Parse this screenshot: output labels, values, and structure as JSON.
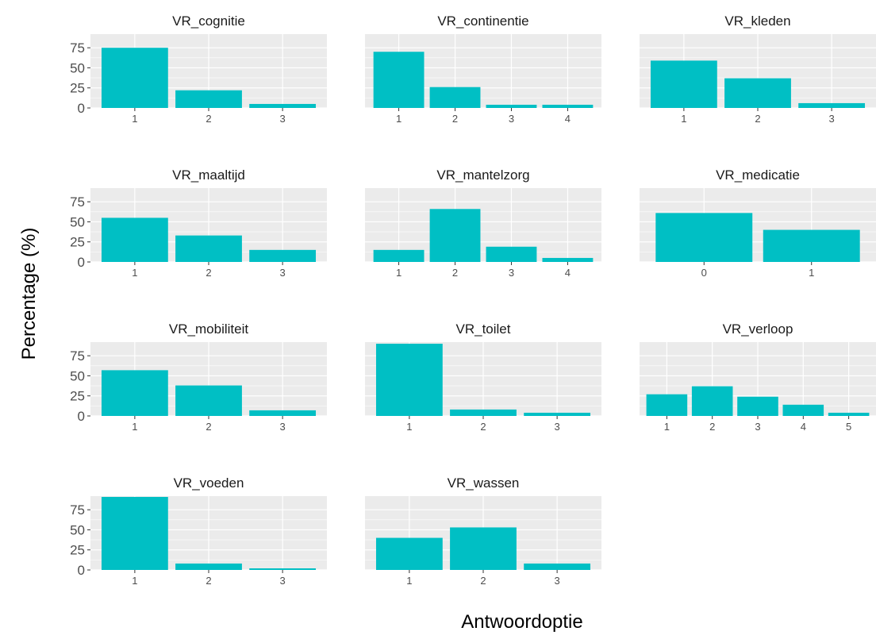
{
  "colors": {
    "bar": "#00bfc4",
    "panel_background": "#ebebeb",
    "gridline": "#ffffff",
    "tick_text": "#4d4d4d",
    "title_text": "#1a1a1a"
  },
  "chart_data": {
    "type": "bar",
    "layout": "facet-grid",
    "facet_columns": 3,
    "xlabel": "Antwoordoptie",
    "ylabel": "Percentage (%)",
    "ylim": [
      0,
      92
    ],
    "y_ticks": [
      0,
      25,
      50,
      75
    ],
    "y_tick_labels": [
      "0",
      "25",
      "50",
      "75"
    ],
    "grid": true,
    "shared_y": true,
    "free_x": true,
    "facets": [
      {
        "title": "VR_cognitie",
        "categories": [
          "1",
          "2",
          "3"
        ],
        "values": [
          75,
          22,
          5
        ]
      },
      {
        "title": "VR_continentie",
        "categories": [
          "1",
          "2",
          "3",
          "4"
        ],
        "values": [
          70,
          26,
          4,
          4
        ]
      },
      {
        "title": "VR_kleden",
        "categories": [
          "1",
          "2",
          "3"
        ],
        "values": [
          59,
          37,
          6
        ]
      },
      {
        "title": "VR_maaltijd",
        "categories": [
          "1",
          "2",
          "3"
        ],
        "values": [
          55,
          33,
          15
        ]
      },
      {
        "title": "VR_mantelzorg",
        "categories": [
          "1",
          "2",
          "3",
          "4"
        ],
        "values": [
          15,
          66,
          19,
          5
        ]
      },
      {
        "title": "VR_medicatie",
        "categories": [
          "0",
          "1"
        ],
        "values": [
          61,
          40
        ]
      },
      {
        "title": "VR_mobiliteit",
        "categories": [
          "1",
          "2",
          "3"
        ],
        "values": [
          57,
          38,
          7
        ]
      },
      {
        "title": "VR_toilet",
        "categories": [
          "1",
          "2",
          "3"
        ],
        "values": [
          90,
          8,
          4
        ]
      },
      {
        "title": "VR_verloop",
        "categories": [
          "1",
          "2",
          "3",
          "4",
          "5"
        ],
        "values": [
          27,
          37,
          24,
          14,
          4
        ]
      },
      {
        "title": "VR_voeden",
        "categories": [
          "1",
          "2",
          "3"
        ],
        "values": [
          91,
          8,
          2
        ]
      },
      {
        "title": "VR_wassen",
        "categories": [
          "1",
          "2",
          "3"
        ],
        "values": [
          40,
          53,
          8
        ]
      }
    ]
  }
}
